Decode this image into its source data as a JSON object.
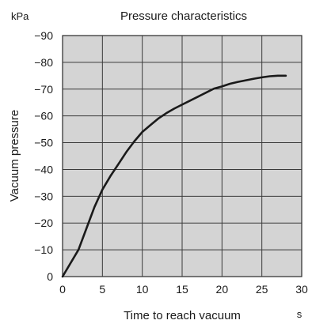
{
  "chart_data": {
    "type": "line",
    "title": "Pressure characteristics",
    "xlabel": "Time to reach vacuum",
    "ylabel": "Vacuum pressure",
    "x_unit": "s",
    "y_unit": "kPa",
    "xlim": [
      0,
      30
    ],
    "ylim": [
      0,
      -90
    ],
    "x_ticks": [
      "0",
      "5",
      "10",
      "15",
      "20",
      "25",
      "30"
    ],
    "y_ticks": [
      "0",
      "−10",
      "−20",
      "−30",
      "−40",
      "−50",
      "−60",
      "−70",
      "−80",
      "−90"
    ],
    "grid": true,
    "colors": {
      "plot_background": "#d4d4d4",
      "line": "#1a1a1a",
      "grid": "#3a3a3a"
    },
    "series": [
      {
        "x": [
          0,
          2,
          3,
          4,
          5,
          6,
          7,
          8,
          9,
          10,
          11,
          12,
          13,
          14,
          15,
          16,
          17,
          18,
          19,
          20,
          21,
          22,
          23,
          24,
          25,
          26,
          27,
          28
        ],
        "y": [
          0,
          -10,
          -18,
          -26,
          -32.5,
          -37.5,
          -42,
          -46.5,
          -50.5,
          -54,
          -56.5,
          -59,
          -61,
          -62.7,
          -64.2,
          -65.7,
          -67.2,
          -68.7,
          -70.2,
          -71,
          -72,
          -72.7,
          -73.3,
          -73.9,
          -74.4,
          -74.8,
          -75,
          -75
        ]
      }
    ]
  }
}
